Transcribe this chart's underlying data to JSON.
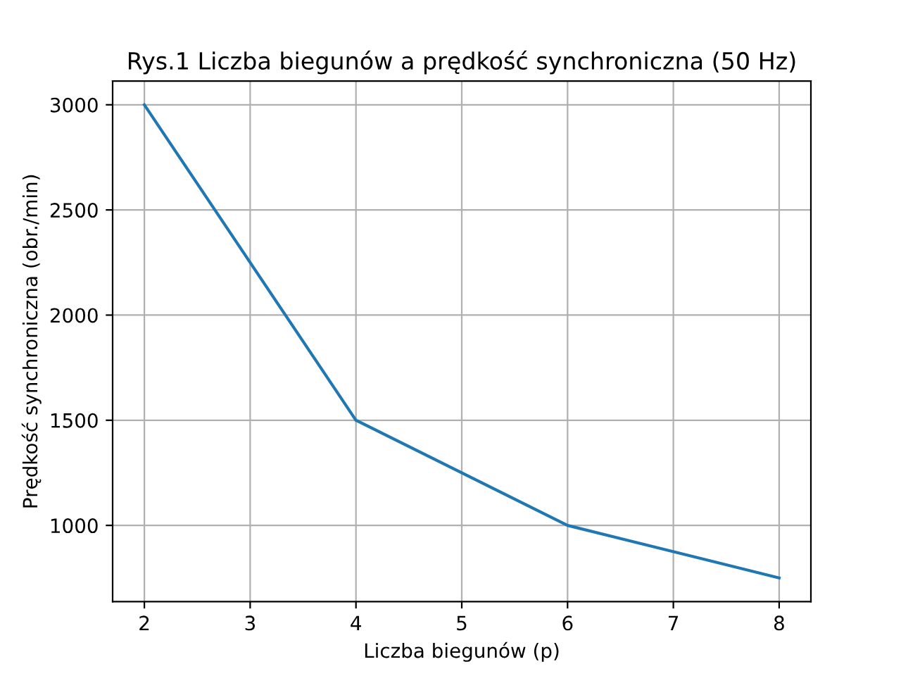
{
  "chart_data": {
    "type": "line",
    "title": "Rys.1 Liczba biegunów a prędkość synchroniczna (50 Hz)",
    "xlabel": "Liczba biegunów (p)",
    "ylabel": "Prędkość synchroniczna (obr./min)",
    "x": [
      2,
      4,
      6,
      8
    ],
    "series": [
      {
        "color": "#1f77b4",
        "values": [
          3000,
          1500,
          1000,
          750
        ]
      }
    ],
    "xlim": [
      1.7,
      8.3
    ],
    "ylim": [
      637.5,
      3112.5
    ],
    "xticks": [
      2,
      3,
      4,
      5,
      6,
      7,
      8
    ],
    "yticks": [
      1000,
      1500,
      2000,
      2500,
      3000
    ],
    "grid": true
  }
}
